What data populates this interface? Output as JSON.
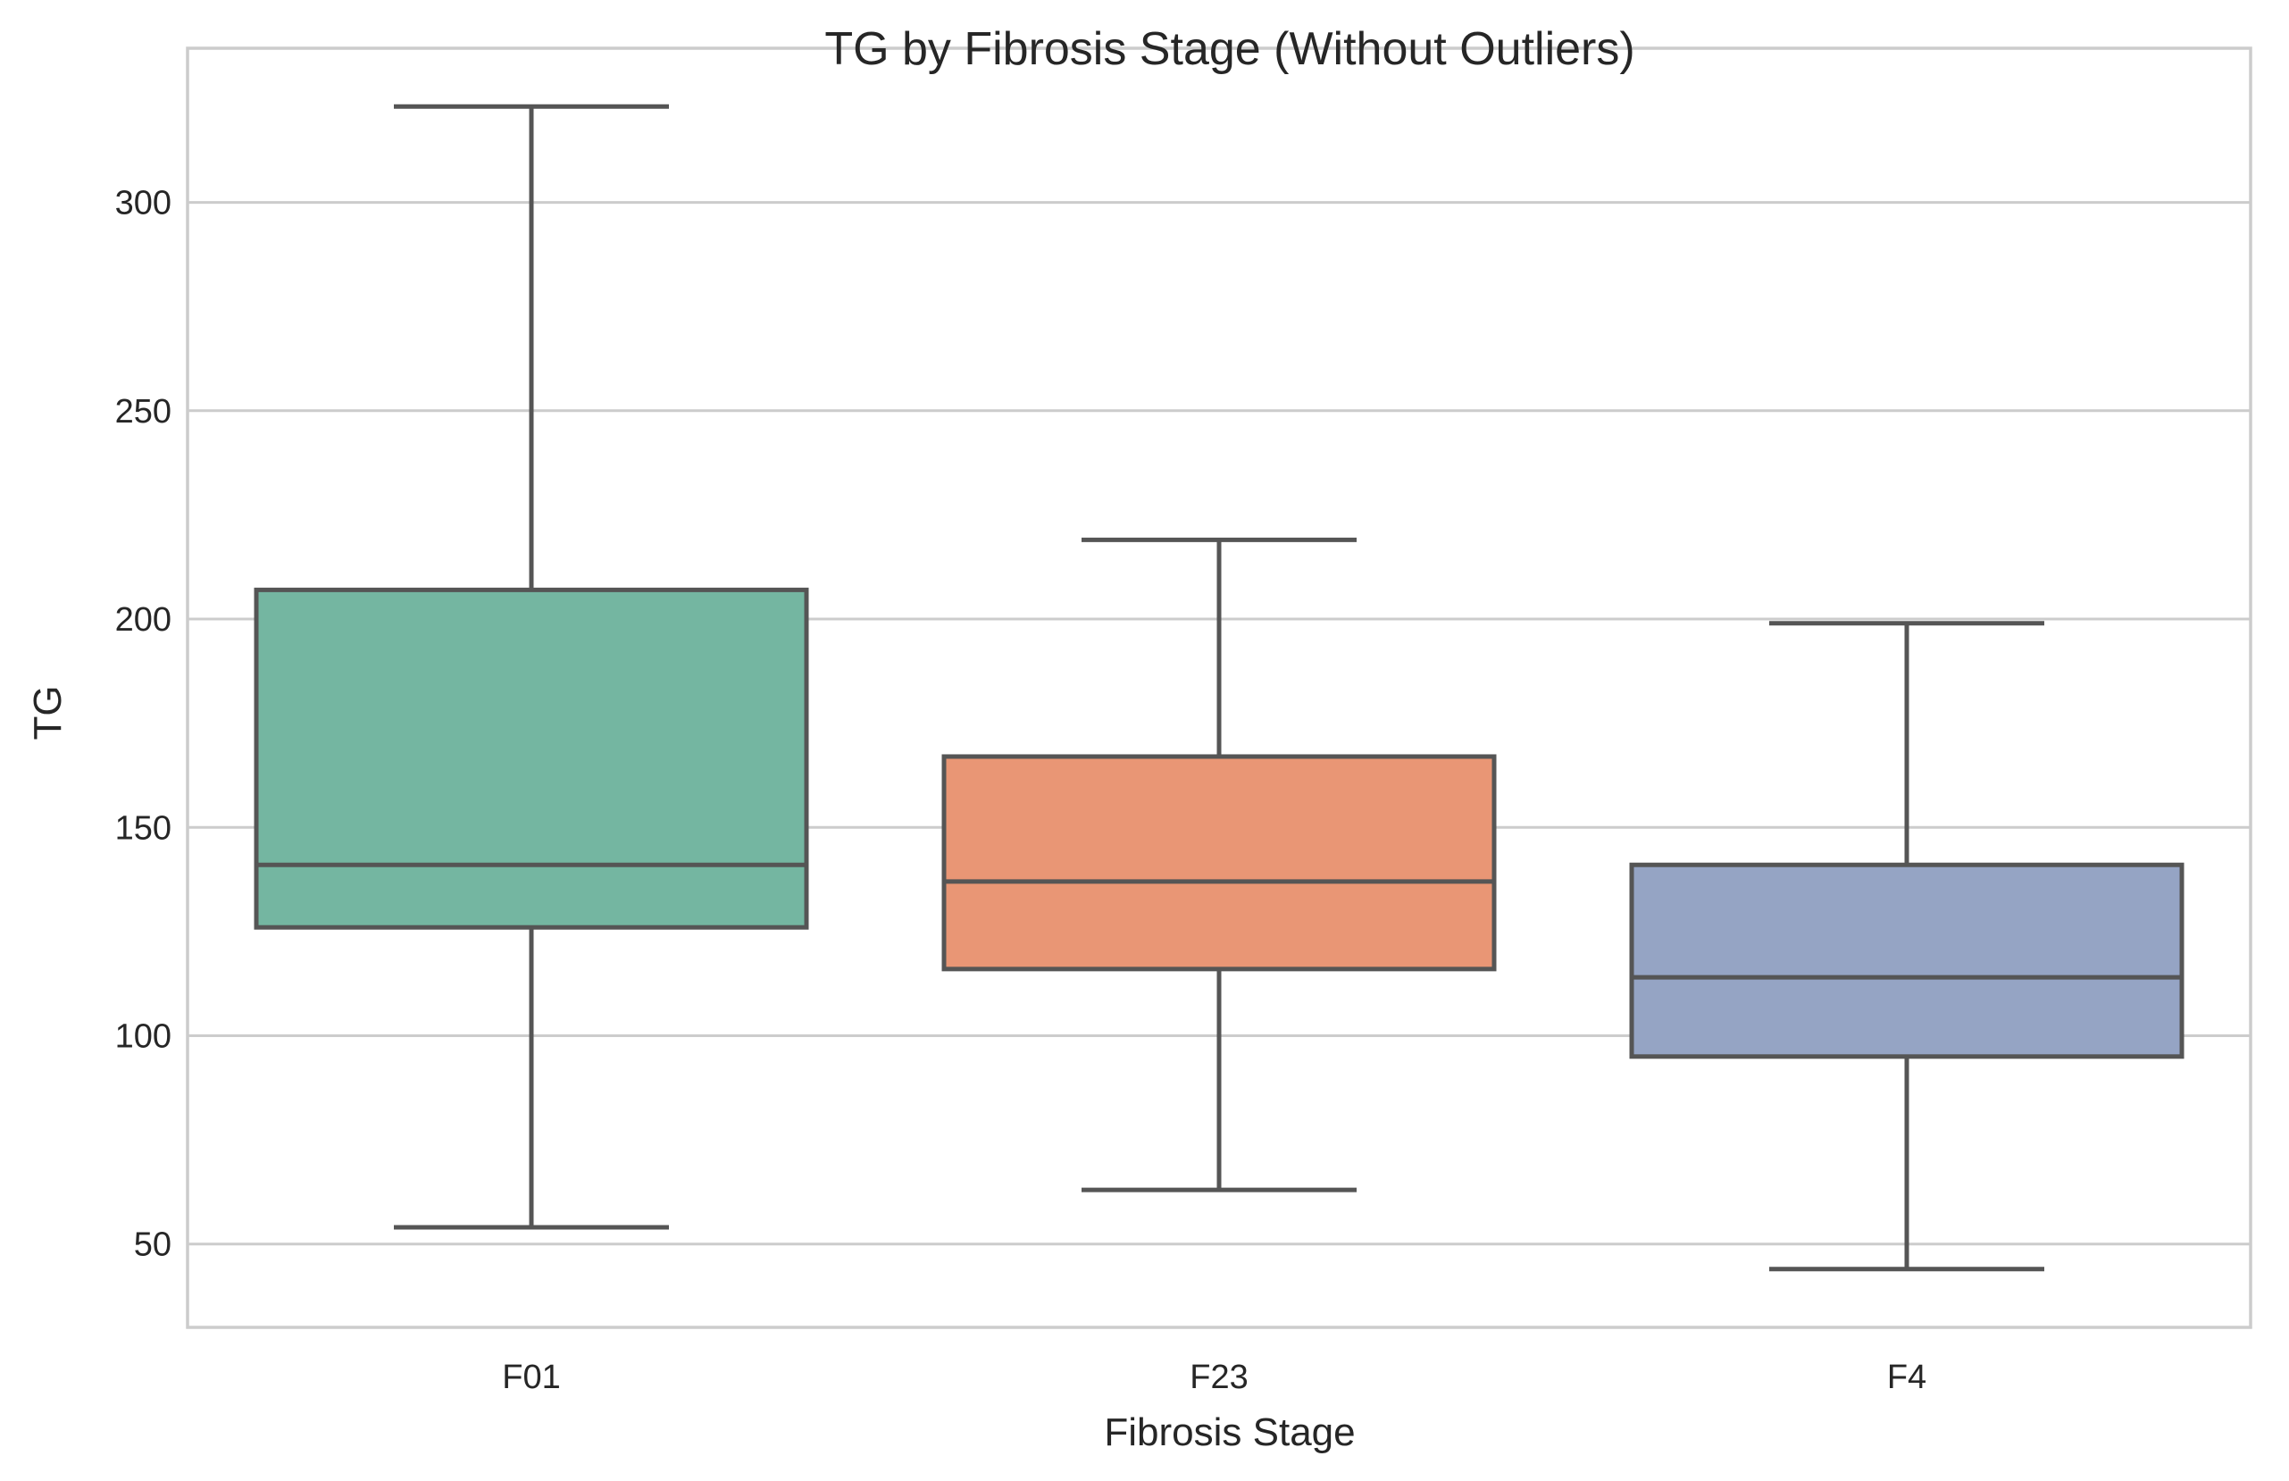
{
  "chart_data": {
    "type": "box",
    "title": "TG by Fibrosis Stage (Without Outliers)",
    "xlabel": "Fibrosis Stage",
    "ylabel": "TG",
    "ylim": [
      30,
      337
    ],
    "yticks": [
      50,
      100,
      150,
      200,
      250,
      300
    ],
    "grid": true,
    "edge_color": "#555555",
    "grid_color": "#cccccc",
    "categories": [
      "F01",
      "F23",
      "F4"
    ],
    "boxes": [
      {
        "category": "F01",
        "whisker_low": 54,
        "q1": 126,
        "median": 141,
        "q3": 207,
        "whisker_high": 323,
        "color": "#74b6a1"
      },
      {
        "category": "F23",
        "whisker_low": 63,
        "q1": 116,
        "median": 137,
        "q3": 167,
        "whisker_high": 219,
        "color": "#e99675"
      },
      {
        "category": "F4",
        "whisker_low": 44,
        "q1": 95,
        "median": 114,
        "q3": 141,
        "whisker_high": 199,
        "color": "#95a4c4"
      }
    ]
  }
}
